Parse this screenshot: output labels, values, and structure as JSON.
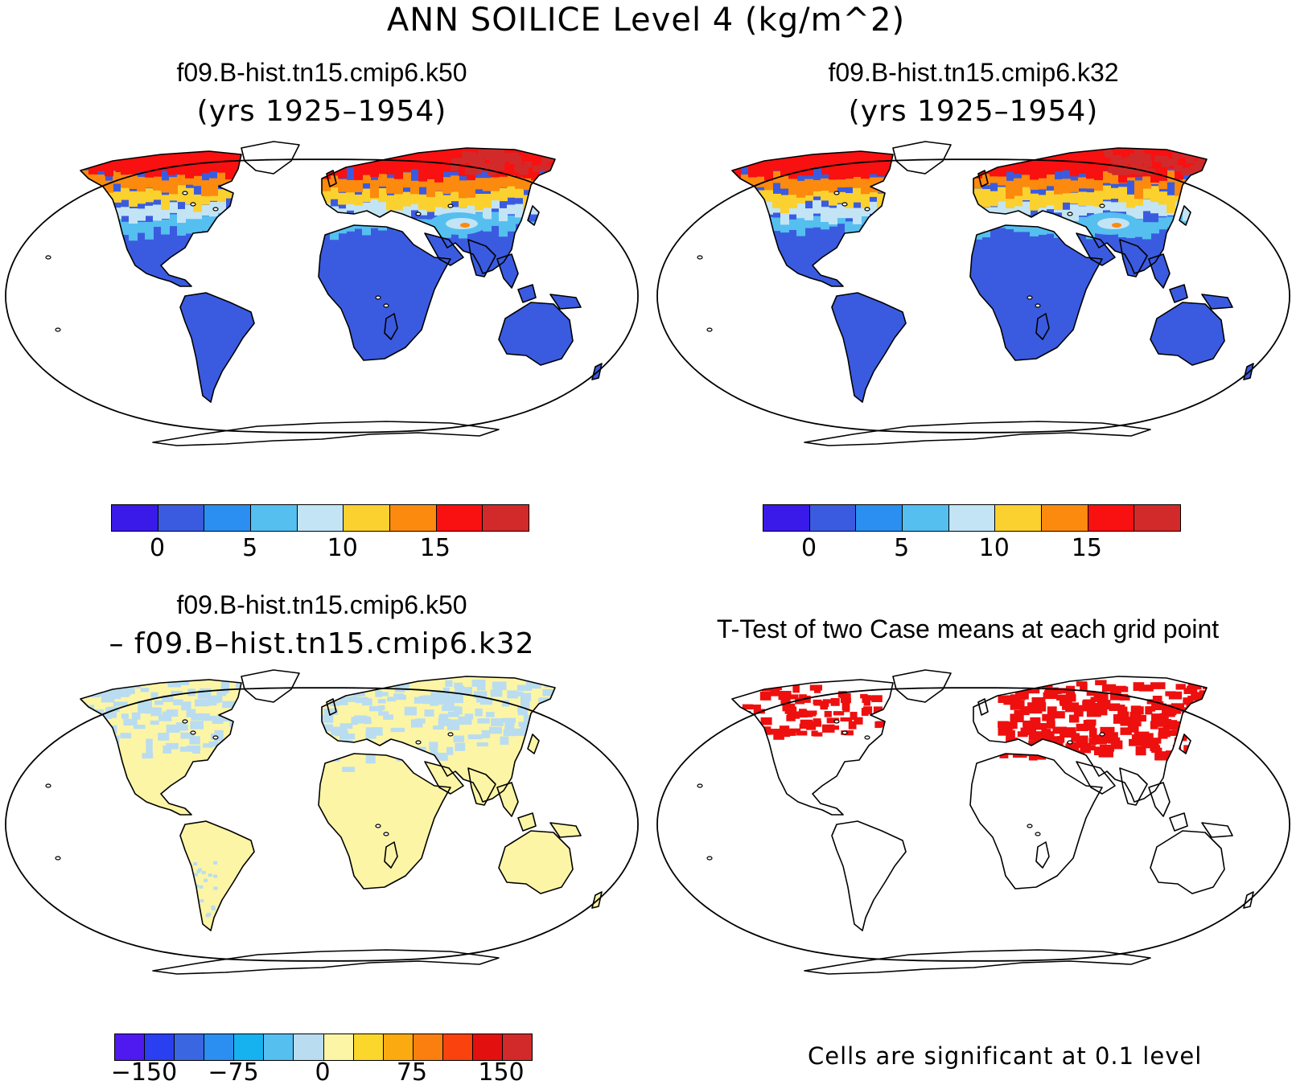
{
  "title": "ANN SOILICE Level 4 (kg/m^2)",
  "panels": [
    {
      "title": "f09.B-hist.tn15.cmip6.k50",
      "subtitle": "(yrs 1925–1954)"
    },
    {
      "title": "f09.B-hist.tn15.cmip6.k32",
      "subtitle": "(yrs 1925–1954)"
    },
    {
      "title": "f09.B-hist.tn15.cmip6.k50",
      "subtitle": "– f09.B–hist.tn15.cmip6.k32"
    },
    {
      "title": "T-Test of two Case means at each grid point",
      "subtitle": ""
    }
  ],
  "colorbar_abs": {
    "colors": [
      "#3a1ae8",
      "#3a5be0",
      "#2a8ff0",
      "#55bff0",
      "#c3e4f5",
      "#fbd12f",
      "#fb8a0e",
      "#f91010",
      "#d22a2a"
    ],
    "labels": [
      "0",
      "5",
      "10",
      "15"
    ]
  },
  "colorbar_diff": {
    "colors": [
      "#4f1aef",
      "#2a3ff0",
      "#3a66e2",
      "#2a8ff0",
      "#16b2f0",
      "#55bff0",
      "#b9dcf0",
      "#fcf5a6",
      "#fbd72b",
      "#fbaa10",
      "#fb7f0e",
      "#f9420e",
      "#e31010",
      "#d22a2a"
    ],
    "labels": [
      "−150",
      "−75",
      "0",
      "75",
      "150"
    ]
  },
  "significance_note": "Cells are significant at 0.1 level",
  "land_colors": {
    "panel_abs": "#3a5be0",
    "panel_diff": "#fcf5a6",
    "diff_light_blue": "#b9dcf0",
    "signif": "#ee0f0f"
  }
}
